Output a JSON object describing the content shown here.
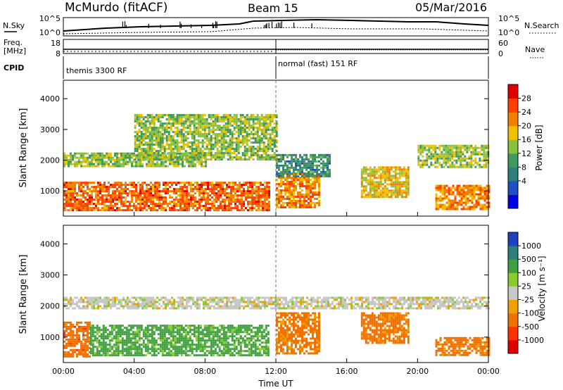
{
  "header": {
    "station": "McMurdo (fitACF)",
    "beam": "Beam 15",
    "date": "05/Mar/2016"
  },
  "noise_panel": {
    "left_label": "N.Sky",
    "left_ticks": [
      "10^5",
      "10^0"
    ],
    "right_ticks": [
      "10^5",
      "10^0"
    ],
    "right_label": "N.Search",
    "freq_label_1": "Freq.",
    "freq_label_2": "[MHz]",
    "freq_ticks": [
      "18",
      "8"
    ],
    "nave_ticks": [
      "60",
      "0"
    ],
    "nave_label": "Nave"
  },
  "cpid": {
    "label": "CPID",
    "program_1": "themis 3300 RF",
    "program_2": "normal (fast) 151 RF"
  },
  "colorbars": {
    "power": {
      "label": "Power [dB]",
      "ticks": [
        "28",
        "24",
        "20",
        "16",
        "12",
        "8",
        "4"
      ],
      "colors": [
        "#0000e0",
        "#1f4fc0",
        "#2e7f7a",
        "#3f9a5c",
        "#88c040",
        "#f0c000",
        "#f08000",
        "#ff4000",
        "#e00000"
      ]
    },
    "velocity": {
      "label": "Velocity [m s⁻¹]",
      "ticks": [
        "1000",
        "500",
        "100",
        "25",
        "-25",
        "-100",
        "-500",
        "-1000"
      ],
      "colors": [
        "#2040c0",
        "#2e7f7a",
        "#40a040",
        "#88cc30",
        "#c8c8c8",
        "#f0a000",
        "#f07000",
        "#ff3000",
        "#e00000"
      ]
    }
  },
  "chart_data": [
    {
      "type": "heatmap",
      "title": "",
      "xlabel": "Time UT",
      "ylabel": "Slant Range [km]",
      "x_ticks": [
        "00:00",
        "04:00",
        "08:00",
        "12:00",
        "16:00",
        "20:00",
        "00:00"
      ],
      "y_ticks": [
        "1000",
        "2000",
        "3000",
        "4000"
      ],
      "xlim": [
        0,
        24
      ],
      "ylim": [
        180,
        4600
      ],
      "colorbar": "Power [dB]",
      "regions": [
        {
          "t": [
            0,
            11.6
          ],
          "range": [
            400,
            1300
          ],
          "value": 28
        },
        {
          "t": [
            0,
            8
          ],
          "range": [
            1800,
            2250
          ],
          "value": 18
        },
        {
          "t": [
            4,
            12
          ],
          "range": [
            2000,
            3500
          ],
          "value": 18
        },
        {
          "t": [
            12,
            14.5
          ],
          "range": [
            500,
            1600
          ],
          "value": 26
        },
        {
          "t": [
            12,
            15
          ],
          "range": [
            1500,
            2200
          ],
          "value": 12
        },
        {
          "t": [
            16.8,
            19.5
          ],
          "range": [
            800,
            1800
          ],
          "value": 22
        },
        {
          "t": [
            20,
            24
          ],
          "range": [
            1800,
            2500
          ],
          "value": 18
        },
        {
          "t": [
            21,
            24
          ],
          "range": [
            400,
            1200
          ],
          "value": 26
        }
      ]
    },
    {
      "type": "heatmap",
      "title": "",
      "xlabel": "Time UT",
      "ylabel": "Slant Range [km]",
      "x_ticks": [
        "00:00",
        "04:00",
        "08:00",
        "12:00",
        "16:00",
        "20:00",
        "00:00"
      ],
      "y_ticks": [
        "1000",
        "2000",
        "3000",
        "4000"
      ],
      "xlim": [
        0,
        24
      ],
      "ylim": [
        180,
        4600
      ],
      "colorbar": "Velocity [m s⁻¹]",
      "regions": [
        {
          "t": [
            0,
            1.5
          ],
          "range": [
            400,
            1500
          ],
          "value": -300
        },
        {
          "t": [
            1.5,
            11.6
          ],
          "range": [
            400,
            1400
          ],
          "value": 200
        },
        {
          "t": [
            0,
            24
          ],
          "range": [
            1900,
            2300
          ],
          "value": 0
        },
        {
          "t": [
            12,
            14.5
          ],
          "range": [
            500,
            1800
          ],
          "value": -200
        },
        {
          "t": [
            16.8,
            19.5
          ],
          "range": [
            800,
            1800
          ],
          "value": -200
        },
        {
          "t": [
            21,
            24
          ],
          "range": [
            400,
            1000
          ],
          "value": -200
        }
      ]
    }
  ]
}
